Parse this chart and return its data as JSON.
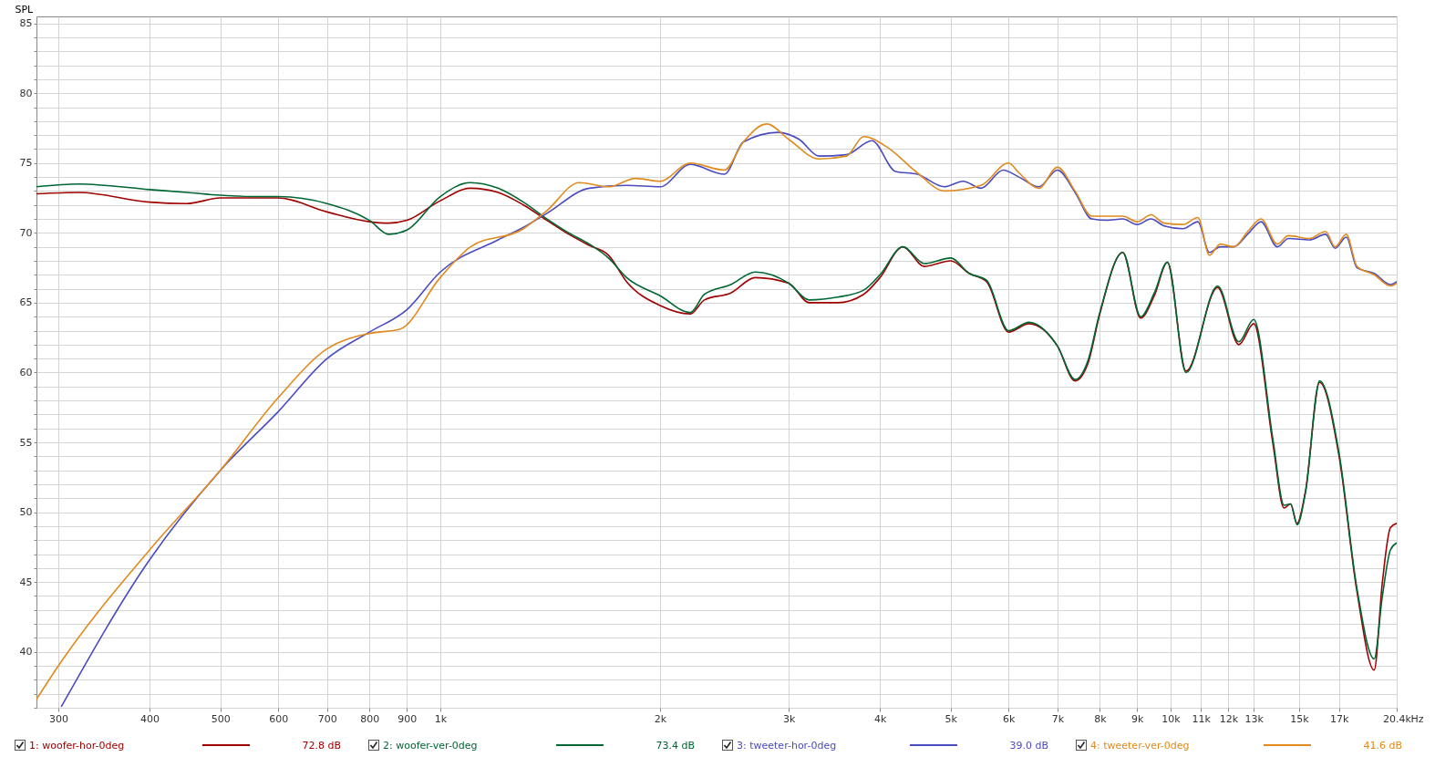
{
  "chart_data": {
    "type": "line",
    "ylabel": "SPL",
    "log": "x",
    "grid": true,
    "legend": "bottom",
    "line_style": "solid",
    "marker": "none",
    "xlim": [
      280,
      20400
    ],
    "xticks": [
      300,
      400,
      500,
      600,
      700,
      800,
      900,
      {
        "value": 1000,
        "label": "1k"
      },
      {
        "value": 2000,
        "label": "2k"
      },
      {
        "value": 3000,
        "label": "3k"
      },
      {
        "value": 4000,
        "label": "4k"
      },
      {
        "value": 5000,
        "label": "5k"
      },
      {
        "value": 6000,
        "label": "6k"
      },
      {
        "value": 7000,
        "label": "7k"
      },
      {
        "value": 8000,
        "label": "8k"
      },
      {
        "value": 9000,
        "label": "9k"
      },
      {
        "value": 10000,
        "label": "10k"
      },
      {
        "value": 11000,
        "label": "11k"
      },
      {
        "value": 12000,
        "label": "12k"
      },
      {
        "value": 13000,
        "label": "13k"
      },
      {
        "value": 15000,
        "label": "15k"
      },
      {
        "value": 17000,
        "label": "17k"
      },
      {
        "value": 20400,
        "label": "20.4k"
      }
    ],
    "xlabel": "Hz",
    "ylim": [
      36,
      85.5
    ],
    "yticks": [
      {
        "value": 36,
        "label": null
      },
      {
        "value": 37,
        "label": null
      },
      {
        "value": 38,
        "label": null
      },
      {
        "value": 39,
        "label": null
      },
      40,
      {
        "value": 41,
        "label": null
      },
      {
        "value": 42,
        "label": null
      },
      {
        "value": 43,
        "label": null
      },
      {
        "value": 44,
        "label": null
      },
      45,
      {
        "value": 46,
        "label": null
      },
      {
        "value": 47,
        "label": null
      },
      {
        "value": 48,
        "label": null
      },
      {
        "value": 49,
        "label": null
      },
      50,
      {
        "value": 51,
        "label": null
      },
      {
        "value": 52,
        "label": null
      },
      {
        "value": 53,
        "label": null
      },
      {
        "value": 54,
        "label": null
      },
      55,
      {
        "value": 56,
        "label": null
      },
      {
        "value": 57,
        "label": null
      },
      {
        "value": 58,
        "label": null
      },
      {
        "value": 59,
        "label": null
      },
      60,
      {
        "value": 61,
        "label": null
      },
      {
        "value": 62,
        "label": null
      },
      {
        "value": 63,
        "label": null
      },
      {
        "value": 64,
        "label": null
      },
      65,
      {
        "value": 66,
        "label": null
      },
      {
        "value": 67,
        "label": null
      },
      {
        "value": 68,
        "label": null
      },
      {
        "value": 69,
        "label": null
      },
      70,
      {
        "value": 71,
        "label": null
      },
      {
        "value": 72,
        "label": null
      },
      {
        "value": 73,
        "label": null
      },
      {
        "value": 74,
        "label": null
      },
      75,
      {
        "value": 76,
        "label": null
      },
      {
        "value": 77,
        "label": null
      },
      {
        "value": 78,
        "label": null
      },
      {
        "value": 79,
        "label": null
      },
      80,
      {
        "value": 81,
        "label": null
      },
      {
        "value": 82,
        "label": null
      },
      {
        "value": 83,
        "label": null
      },
      {
        "value": 84,
        "label": null
      },
      85
    ],
    "annotations": [
      "72.8 dB",
      "73.4 dB",
      "39.0 dB",
      "41.6 dB"
    ],
    "series": [
      {
        "name": "1: woofer-hor-0deg",
        "color": "#a00000",
        "x": [
          280,
          320,
          400,
          450,
          500,
          560,
          600,
          700,
          800,
          850,
          900,
          1000,
          1100,
          1200,
          1300,
          1400,
          1500,
          1600,
          1700,
          1800,
          2000,
          2200,
          2300,
          2500,
          2700,
          3000,
          3200,
          3500,
          3800,
          4000,
          4300,
          4600,
          5000,
          5300,
          5600,
          6000,
          6400,
          7000,
          7400,
          7700,
          8000,
          8600,
          9100,
          9500,
          9900,
          10500,
          11600,
          12400,
          13000,
          13800,
          14300,
          14600,
          14900,
          15300,
          16000,
          17000,
          18000,
          19000,
          19500,
          20000,
          20400
        ],
        "values": [
          72.8,
          72.9,
          72.2,
          72.1,
          72.5,
          72.5,
          72.5,
          71.5,
          70.8,
          70.7,
          70.9,
          72.3,
          73.2,
          72.9,
          72.0,
          70.9,
          69.9,
          69.1,
          68.4,
          66.5,
          64.8,
          64.2,
          65.2,
          65.7,
          66.8,
          66.4,
          65.0,
          65.0,
          65.6,
          66.8,
          69.0,
          67.6,
          68.0,
          67.1,
          66.5,
          62.9,
          63.5,
          61.9,
          59.4,
          60.6,
          64.2,
          68.6,
          63.9,
          65.5,
          67.9,
          60.1,
          66.1,
          62.0,
          63.5,
          55.0,
          50.3,
          50.6,
          49.2,
          51.5,
          59.3,
          54.1,
          44.3,
          38.7,
          45.0,
          48.9,
          49.2
        ]
      },
      {
        "name": "2: woofer-ver-0deg",
        "color": "#006633",
        "x": [
          280,
          320,
          400,
          450,
          500,
          560,
          600,
          700,
          800,
          850,
          900,
          1000,
          1100,
          1200,
          1300,
          1400,
          1500,
          1600,
          1700,
          1800,
          2000,
          2200,
          2300,
          2500,
          2700,
          3000,
          3200,
          3500,
          3800,
          4000,
          4300,
          4600,
          5000,
          5300,
          5600,
          6000,
          6400,
          7000,
          7400,
          7700,
          8000,
          8600,
          9100,
          9500,
          9900,
          10500,
          11600,
          12400,
          13000,
          13800,
          14300,
          14600,
          14900,
          15300,
          16000,
          17000,
          18000,
          19000,
          19500,
          20000,
          20400
        ],
        "values": [
          73.3,
          73.5,
          73.1,
          72.9,
          72.7,
          72.6,
          72.6,
          72.1,
          70.9,
          69.9,
          70.2,
          72.6,
          73.6,
          73.2,
          72.2,
          71.0,
          70.0,
          69.2,
          68.2,
          66.8,
          65.5,
          64.3,
          65.6,
          66.3,
          67.2,
          66.4,
          65.2,
          65.4,
          65.9,
          67.0,
          69.0,
          67.8,
          68.2,
          67.1,
          66.6,
          63.0,
          63.6,
          61.9,
          59.5,
          60.8,
          64.3,
          68.6,
          64.0,
          65.7,
          67.9,
          60.0,
          66.2,
          62.2,
          63.8,
          55.3,
          50.5,
          50.6,
          49.1,
          51.4,
          59.4,
          54.3,
          44.5,
          39.5,
          44.0,
          47.3,
          47.8
        ]
      },
      {
        "name": "3: tweeter-hor-0deg",
        "color": "#4b4bc0",
        "x": [
          303,
          400,
          500,
          600,
          700,
          800,
          900,
          1000,
          1200,
          1300,
          1400,
          1600,
          1800,
          2000,
          2200,
          2450,
          2600,
          2900,
          3100,
          3300,
          3600,
          3900,
          4200,
          4500,
          4900,
          5200,
          5500,
          5900,
          6200,
          6600,
          7000,
          7400,
          7800,
          8200,
          8600,
          9000,
          9400,
          9800,
          10400,
          10900,
          11300,
          11700,
          12200,
          12800,
          13300,
          14000,
          14500,
          15500,
          16300,
          16800,
          17400,
          18000,
          19000,
          20000,
          20400
        ],
        "values": [
          36.1,
          46.6,
          53.0,
          57.2,
          61.0,
          62.9,
          64.5,
          67.2,
          69.5,
          70.4,
          71.4,
          73.2,
          73.4,
          73.3,
          74.9,
          74.2,
          76.5,
          77.2,
          76.7,
          75.5,
          75.6,
          76.6,
          74.4,
          74.2,
          73.3,
          73.7,
          73.2,
          74.5,
          74.0,
          73.3,
          74.5,
          72.9,
          71.0,
          70.9,
          71.0,
          70.6,
          71.0,
          70.5,
          70.3,
          70.8,
          68.6,
          69.0,
          69.0,
          70.0,
          70.8,
          69.0,
          69.6,
          69.5,
          69.9,
          68.9,
          69.7,
          67.5,
          67.1,
          66.3,
          66.5
        ]
      },
      {
        "name": "4: tweeter-ver-0deg",
        "color": "#e08a1e",
        "x": [
          280,
          300,
          400,
          500,
          600,
          700,
          800,
          880,
          1000,
          1100,
          1300,
          1400,
          1550,
          1700,
          1850,
          2000,
          2200,
          2450,
          2600,
          2800,
          3000,
          3300,
          3600,
          3800,
          4100,
          4500,
          4900,
          5500,
          6000,
          6200,
          6600,
          7000,
          7400,
          7800,
          8200,
          8600,
          9000,
          9400,
          9800,
          10400,
          10900,
          11300,
          11700,
          12200,
          12800,
          13300,
          14000,
          14500,
          15500,
          16300,
          16800,
          17400,
          18000,
          19000,
          20000,
          20400
        ],
        "values": [
          36.6,
          39.0,
          47.3,
          53.0,
          58.2,
          61.7,
          62.8,
          63.1,
          66.8,
          69.0,
          70.3,
          71.6,
          73.6,
          73.3,
          73.9,
          73.7,
          75.0,
          74.5,
          76.5,
          77.8,
          76.7,
          75.3,
          75.5,
          76.9,
          76.1,
          74.3,
          73.0,
          73.4,
          75.0,
          74.3,
          73.2,
          74.7,
          73.0,
          71.2,
          71.2,
          71.2,
          70.8,
          71.3,
          70.7,
          70.6,
          71.1,
          68.4,
          69.2,
          69.0,
          70.2,
          71.0,
          69.2,
          69.8,
          69.6,
          70.1,
          69.0,
          69.9,
          67.6,
          67.0,
          66.2,
          66.4
        ]
      }
    ]
  }
}
